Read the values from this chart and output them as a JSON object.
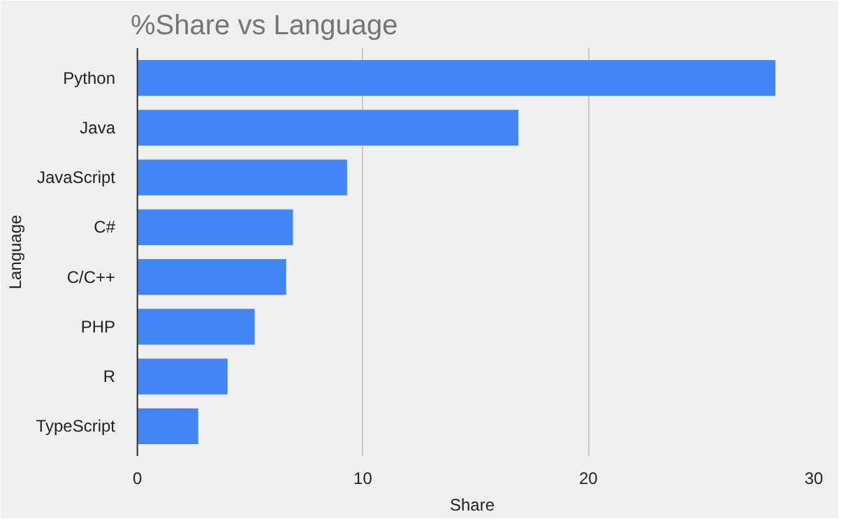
{
  "chart_data": {
    "type": "bar",
    "orientation": "horizontal",
    "title": "%Share vs Language",
    "xlabel": "Share",
    "ylabel": "Language",
    "categories": [
      "Python",
      "Java",
      "JavaScript",
      "C#",
      "C/C++",
      "PHP",
      "R",
      "TypeScript"
    ],
    "values": [
      28.3,
      16.9,
      9.3,
      6.9,
      6.6,
      5.2,
      4.0,
      2.7
    ],
    "color": "#4285f4",
    "xlim": [
      -0.3,
      30
    ],
    "xticks": [
      0,
      10,
      20,
      30
    ],
    "grid": "x"
  }
}
